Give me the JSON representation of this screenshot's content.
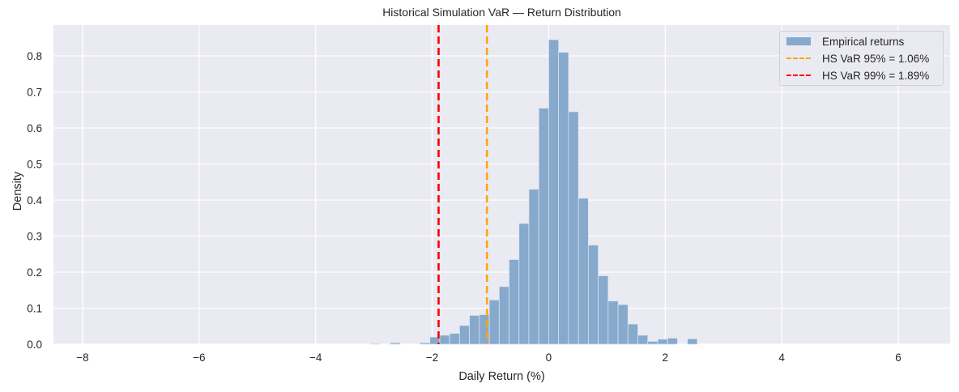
{
  "chart_data": {
    "type": "bar",
    "title": "Historical Simulation VaR — Return Distribution",
    "xlabel": "Daily Return (%)",
    "ylabel": "Density",
    "xlim": [
      -8.5,
      6.9
    ],
    "ylim": [
      0,
      0.885
    ],
    "xticks": [
      -8,
      -6,
      -4,
      -2,
      0,
      2,
      4,
      6
    ],
    "xtick_labels": [
      "−8",
      "−6",
      "−4",
      "−2",
      "0",
      "2",
      "4",
      "6"
    ],
    "yticks": [
      0.0,
      0.1,
      0.2,
      0.3,
      0.4,
      0.5,
      0.6,
      0.7,
      0.8
    ],
    "ytick_labels": [
      "0.0",
      "0.1",
      "0.2",
      "0.3",
      "0.4",
      "0.5",
      "0.6",
      "0.7",
      "0.8"
    ],
    "grid": true,
    "legend_position": "upper right",
    "bin_width": 0.171,
    "bins": [
      {
        "left": -3.06,
        "density": 0.002
      },
      {
        "left": -2.72,
        "density": 0.004
      },
      {
        "left": -2.21,
        "density": 0.004
      },
      {
        "left": -2.04,
        "density": 0.02
      },
      {
        "left": -1.87,
        "density": 0.025
      },
      {
        "left": -1.7,
        "density": 0.03
      },
      {
        "left": -1.53,
        "density": 0.052
      },
      {
        "left": -1.36,
        "density": 0.08
      },
      {
        "left": -1.19,
        "density": 0.082
      },
      {
        "left": -1.02,
        "density": 0.123
      },
      {
        "left": -0.85,
        "density": 0.16
      },
      {
        "left": -0.68,
        "density": 0.235
      },
      {
        "left": -0.51,
        "density": 0.335
      },
      {
        "left": -0.34,
        "density": 0.43
      },
      {
        "left": -0.17,
        "density": 0.655
      },
      {
        "left": 0.0,
        "density": 0.845
      },
      {
        "left": 0.17,
        "density": 0.81
      },
      {
        "left": 0.34,
        "density": 0.645
      },
      {
        "left": 0.51,
        "density": 0.405
      },
      {
        "left": 0.68,
        "density": 0.275
      },
      {
        "left": 0.85,
        "density": 0.19
      },
      {
        "left": 1.02,
        "density": 0.12
      },
      {
        "left": 1.19,
        "density": 0.11
      },
      {
        "left": 1.36,
        "density": 0.056
      },
      {
        "left": 1.53,
        "density": 0.025
      },
      {
        "left": 1.7,
        "density": 0.008
      },
      {
        "left": 1.87,
        "density": 0.014
      },
      {
        "left": 2.04,
        "density": 0.017
      },
      {
        "left": 2.38,
        "density": 0.015
      }
    ],
    "vlines": [
      {
        "x": -1.06,
        "label": "HS VaR 95% = 1.06%",
        "color": "#ffa500"
      },
      {
        "x": -1.89,
        "label": "HS VaR 99% = 1.89%",
        "color": "#ff0000"
      }
    ],
    "series": [
      {
        "name": "Empirical returns",
        "color": "#86a9cc"
      }
    ]
  },
  "legend": {
    "items": [
      {
        "label": "Empirical returns",
        "color": "#86a9cc"
      },
      {
        "label": "HS VaR 95% = 1.06%",
        "color": "#ffa500"
      },
      {
        "label": "HS VaR 99% = 1.89%",
        "color": "#ff0000"
      }
    ]
  },
  "colors": {
    "plot_bg": "#eaeaf2",
    "grid": "#ffffff",
    "bar": "#86a9cc",
    "bar_edge": "#dce6f0"
  }
}
